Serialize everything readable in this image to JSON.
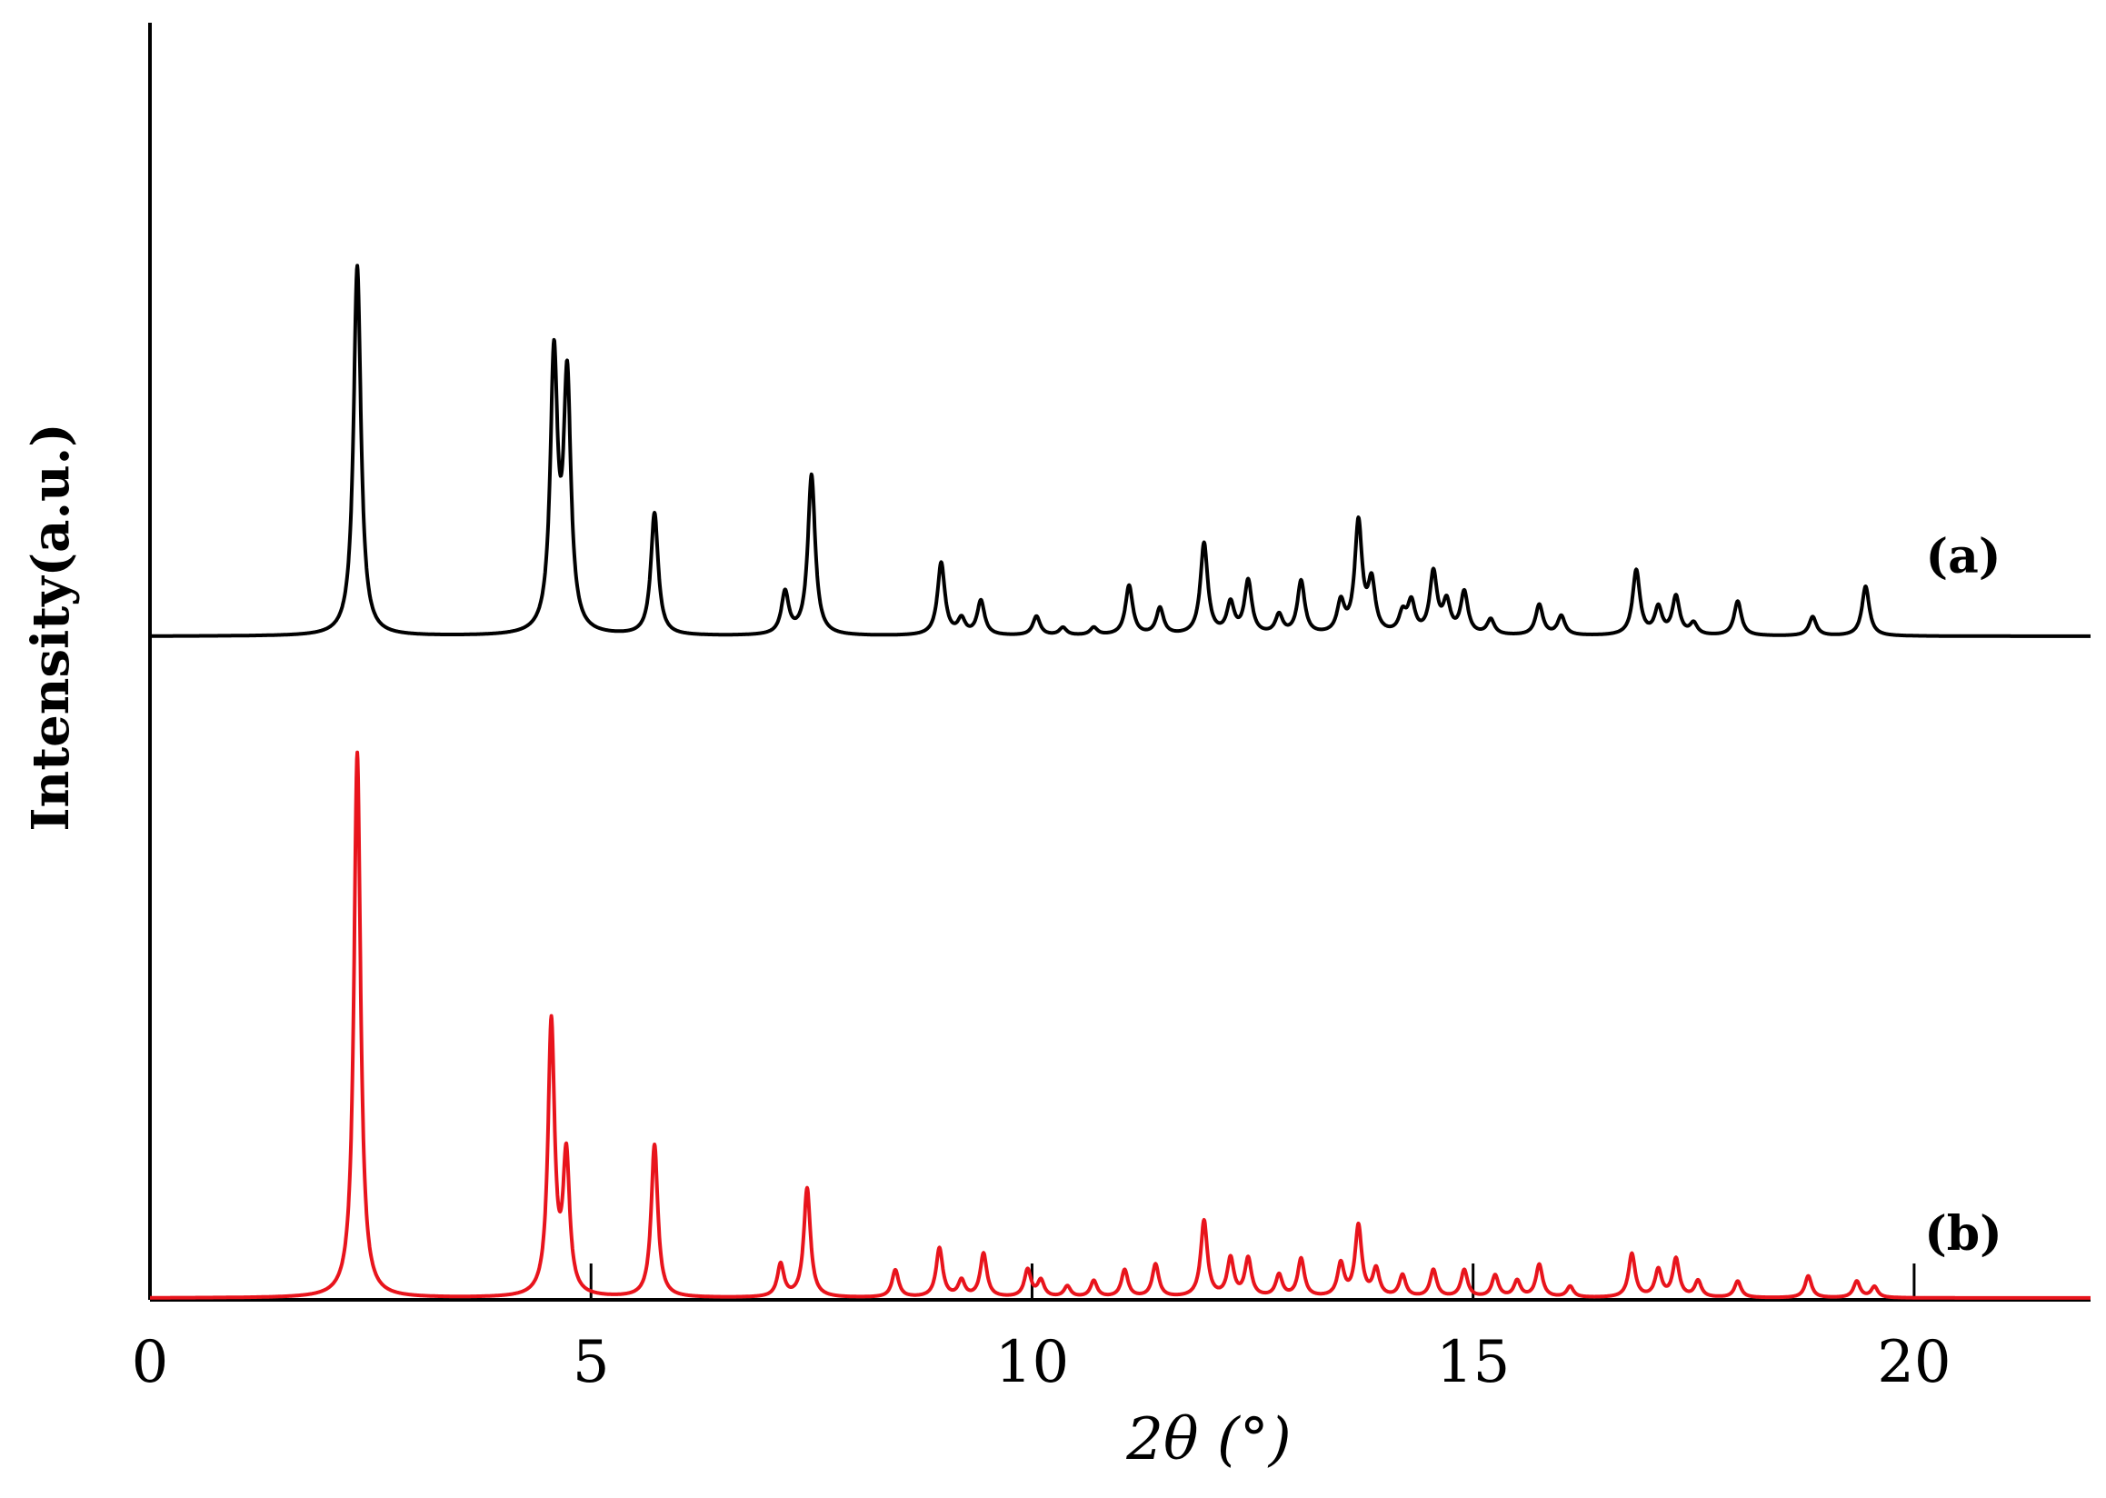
{
  "chart_data": {
    "type": "line",
    "xlabel": "2θ (°)",
    "ylabel": "Intensity(a.u.)",
    "xlim": [
      0,
      22
    ],
    "x_ticks": [
      "0",
      "5",
      "10",
      "15",
      "20"
    ],
    "x_tick_values": [
      0,
      5,
      10,
      15,
      20
    ],
    "ylim": [
      0,
      1
    ],
    "grid": false,
    "legend": "none",
    "series": [
      {
        "name": "(a)",
        "color": "#000000",
        "peaks": [
          [
            2.35,
            0.97
          ],
          [
            4.58,
            0.71
          ],
          [
            4.73,
            0.65
          ],
          [
            5.72,
            0.32
          ],
          [
            7.2,
            0.11
          ],
          [
            7.5,
            0.42
          ],
          [
            8.97,
            0.19
          ],
          [
            9.2,
            0.04
          ],
          [
            9.42,
            0.09
          ],
          [
            10.05,
            0.05
          ],
          [
            10.35,
            0.02
          ],
          [
            10.7,
            0.02
          ],
          [
            11.1,
            0.13
          ],
          [
            11.45,
            0.07
          ],
          [
            11.95,
            0.24
          ],
          [
            12.25,
            0.08
          ],
          [
            12.45,
            0.14
          ],
          [
            12.8,
            0.05
          ],
          [
            13.05,
            0.14
          ],
          [
            13.5,
            0.08
          ],
          [
            13.7,
            0.29
          ],
          [
            13.85,
            0.13
          ],
          [
            14.2,
            0.05
          ],
          [
            14.3,
            0.08
          ],
          [
            14.55,
            0.16
          ],
          [
            14.7,
            0.08
          ],
          [
            14.9,
            0.11
          ],
          [
            15.2,
            0.04
          ],
          [
            15.75,
            0.08
          ],
          [
            16.0,
            0.05
          ],
          [
            16.85,
            0.17
          ],
          [
            17.1,
            0.07
          ],
          [
            17.3,
            0.1
          ],
          [
            17.5,
            0.03
          ],
          [
            18.0,
            0.09
          ],
          [
            18.85,
            0.05
          ],
          [
            19.45,
            0.13
          ]
        ]
      },
      {
        "name": "(b)",
        "color": "#e8141c",
        "peaks": [
          [
            2.35,
            1.0
          ],
          [
            4.55,
            0.5
          ],
          [
            4.72,
            0.25
          ],
          [
            5.72,
            0.28
          ],
          [
            7.15,
            0.06
          ],
          [
            7.45,
            0.2
          ],
          [
            8.45,
            0.05
          ],
          [
            8.95,
            0.09
          ],
          [
            9.2,
            0.03
          ],
          [
            9.45,
            0.08
          ],
          [
            9.95,
            0.05
          ],
          [
            10.1,
            0.03
          ],
          [
            10.4,
            0.02
          ],
          [
            10.7,
            0.03
          ],
          [
            11.05,
            0.05
          ],
          [
            11.4,
            0.06
          ],
          [
            11.95,
            0.14
          ],
          [
            12.25,
            0.07
          ],
          [
            12.45,
            0.07
          ],
          [
            12.8,
            0.04
          ],
          [
            13.05,
            0.07
          ],
          [
            13.5,
            0.06
          ],
          [
            13.7,
            0.13
          ],
          [
            13.9,
            0.05
          ],
          [
            14.2,
            0.04
          ],
          [
            14.55,
            0.05
          ],
          [
            14.9,
            0.05
          ],
          [
            15.25,
            0.04
          ],
          [
            15.5,
            0.03
          ],
          [
            15.75,
            0.06
          ],
          [
            16.1,
            0.02
          ],
          [
            16.8,
            0.08
          ],
          [
            17.1,
            0.05
          ],
          [
            17.3,
            0.07
          ],
          [
            17.55,
            0.03
          ],
          [
            18.0,
            0.03
          ],
          [
            18.8,
            0.04
          ],
          [
            19.35,
            0.03
          ],
          [
            19.55,
            0.02
          ]
        ]
      }
    ],
    "minor_ticks_on_baseline": [
      5,
      10,
      15,
      20
    ]
  }
}
